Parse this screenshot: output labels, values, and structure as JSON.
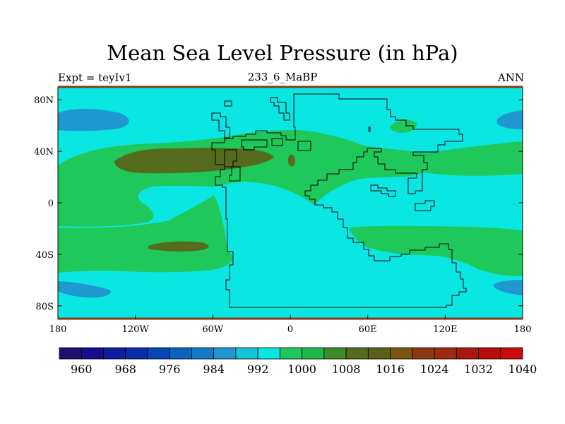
{
  "title": "Mean Sea Level Pressure (in hPa)",
  "left_label": "Expt = teyIv1",
  "center_label": "233_6_MaBP",
  "right_label": "ANN",
  "x_ticks": [
    {
      "lon": -180,
      "label": "180"
    },
    {
      "lon": -120,
      "label": "120W"
    },
    {
      "lon": -60,
      "label": "60W"
    },
    {
      "lon": 0,
      "label": "0"
    },
    {
      "lon": 60,
      "label": "60E"
    },
    {
      "lon": 120,
      "label": "120E"
    },
    {
      "lon": 180,
      "label": "180"
    }
  ],
  "y_ticks": [
    {
      "lat": 80,
      "label": "80N"
    },
    {
      "lat": 40,
      "label": "40N"
    },
    {
      "lat": 0,
      "label": "0"
    },
    {
      "lat": -40,
      "label": "40S"
    },
    {
      "lat": -80,
      "label": "80S"
    }
  ],
  "colorbar": {
    "colors": [
      "#1f0f6e",
      "#170d8c",
      "#0f1e9e",
      "#0a2eaa",
      "#0545b8",
      "#0a63c0",
      "#1479c6",
      "#1e98cf",
      "#13c4d8",
      "#0ae7e3",
      "#1ec85a",
      "#1eb84a",
      "#3e8c28",
      "#556b1e",
      "#5a6014",
      "#7a5612",
      "#8c3810",
      "#9c2a0e",
      "#a8180c",
      "#b80c0c",
      "#cc0a0a"
    ],
    "labels": [
      {
        "pos": 1,
        "text": "960"
      },
      {
        "pos": 3,
        "text": "968"
      },
      {
        "pos": 5,
        "text": "976"
      },
      {
        "pos": 7,
        "text": "984"
      },
      {
        "pos": 9,
        "text": "992"
      },
      {
        "pos": 11,
        "text": "1000"
      },
      {
        "pos": 13,
        "text": "1008"
      },
      {
        "pos": 15,
        "text": "1016"
      },
      {
        "pos": 17,
        "text": "1024"
      },
      {
        "pos": 19,
        "text": "1032"
      },
      {
        "pos": 21,
        "text": "1040"
      }
    ]
  },
  "field_colors": {
    "background": "#0ae7e3",
    "low": "#1e98cf",
    "medium_high": "#1ec85a",
    "high": "#556b1e"
  }
}
